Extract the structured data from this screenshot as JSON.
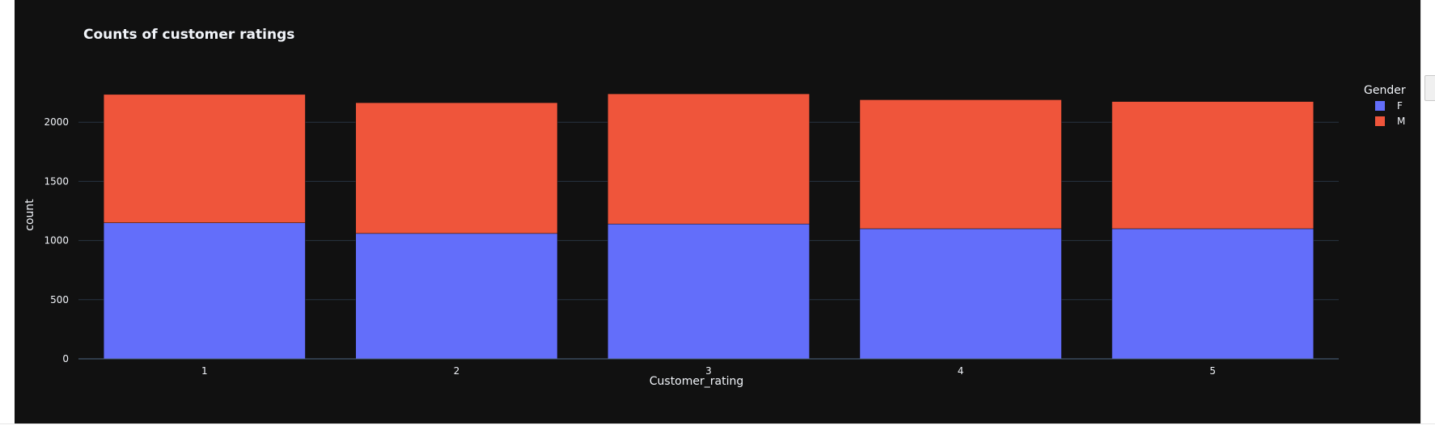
{
  "chart_data": {
    "type": "bar",
    "barmode": "stack",
    "title": "Counts of customer ratings",
    "xlabel": "Customer_rating",
    "ylabel": "count",
    "categories": [
      "1",
      "2",
      "3",
      "4",
      "5"
    ],
    "ylim": [
      0,
      2350
    ],
    "yticks": [
      0,
      500,
      1000,
      1500,
      2000
    ],
    "grid": true,
    "legend": {
      "title": "Gender",
      "placement": "top-right"
    },
    "series": [
      {
        "name": "F",
        "color": "#636efa",
        "values": [
          1150,
          1060,
          1140,
          1100,
          1100
        ]
      },
      {
        "name": "M",
        "color": "#ef553b",
        "values": [
          1085,
          1105,
          1100,
          1090,
          1075
        ]
      }
    ]
  },
  "theme": {
    "background": "#111111",
    "grid_color": "#283442",
    "text_color": "#f2f5fa",
    "bar_outline": "#111111"
  }
}
